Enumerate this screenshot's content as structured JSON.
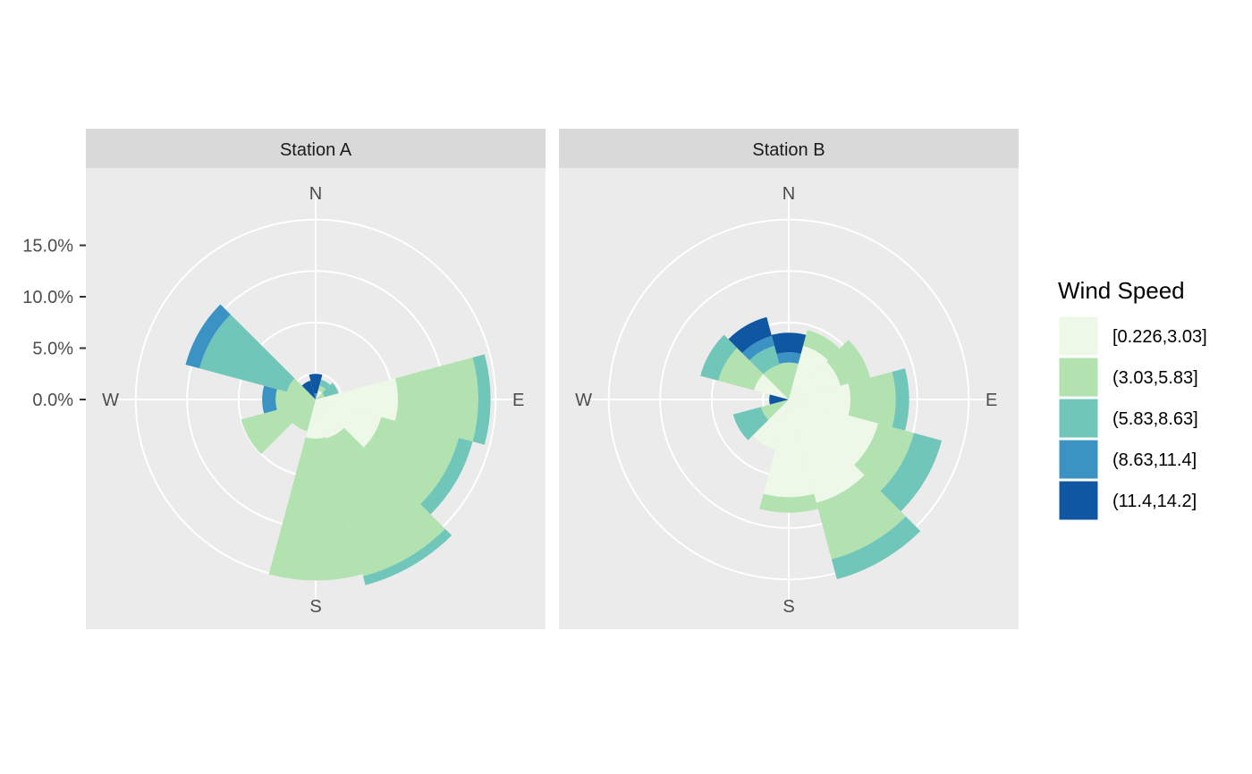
{
  "chart_data": {
    "type": "bar",
    "subtype": "wind-rose (stacked polar bar)",
    "title": "",
    "xlabel": "",
    "ylabel": "",
    "ylim": [
      0,
      20
    ],
    "ytick_values": [
      0,
      5,
      10,
      15
    ],
    "ytick_labels": [
      "0.0%",
      "5.0%",
      "10.0%",
      "15.0%"
    ],
    "radial_grid_values": [
      2.5,
      7.5,
      12.5,
      17.5
    ],
    "direction_labels": [
      {
        "label": "N",
        "angle": 0
      },
      {
        "label": "E",
        "angle": 90
      },
      {
        "label": "S",
        "angle": 180
      },
      {
        "label": "W",
        "angle": 270
      }
    ],
    "sector_angles": [
      0,
      30,
      60,
      90,
      120,
      150,
      180,
      210,
      240,
      270,
      300,
      330
    ],
    "sector_width_deg": 30,
    "grid": true,
    "legend": {
      "title": "Wind Speed",
      "position": "right",
      "bins": [
        "[0.226,3.03]",
        "(3.03,5.83]",
        "(5.83,8.63]",
        "(8.63,11.4]",
        "(11.4,14.2]"
      ],
      "colors": [
        "#edf8e9",
        "#b2e2b0",
        "#70c7b9",
        "#3b93c3",
        "#0f57a3"
      ]
    },
    "panels": [
      {
        "name": "Station A",
        "series": [
          {
            "name": "[0.226,3.03]",
            "values": [
              0,
              0.9,
              0,
              8,
              6.6,
              3.9,
              3.8,
              0,
              0,
              0,
              0,
              0
            ]
          },
          {
            "name": "(3.03,5.83]",
            "values": [
              0,
              0.5,
              0.9,
              7.8,
              7.8,
              13.9,
              13.8,
              3.2,
              7.5,
              3.9,
              2.9,
              0
            ]
          },
          {
            "name": "(5.83,8.63]",
            "values": [
              0,
              0.6,
              1.4,
              1.2,
              1.4,
              0.9,
              0,
              0,
              0,
              0,
              8.8,
              0
            ]
          },
          {
            "name": "(8.63,11.4]",
            "values": [
              0.6,
              0,
              0,
              0,
              0,
              0,
              0,
              0,
              0,
              1.3,
              1.4,
              0
            ]
          },
          {
            "name": "(11.4,14.2]",
            "values": [
              1.9,
              0,
              0,
              0,
              0,
              0,
              0,
              0,
              0,
              0,
              0,
              1.9
            ]
          }
        ]
      },
      {
        "name": "Station B",
        "series": [
          {
            "name": "[0.226,3.03]",
            "values": [
              0,
              5.4,
              5.2,
              6,
              9,
              10.4,
              9.5,
              5,
              0,
              0,
              3.5,
              0
            ]
          },
          {
            "name": "(3.03,5.83]",
            "values": [
              3.6,
              1.6,
              3,
              4.4,
              3.6,
              5.7,
              1.5,
              0,
              2.8,
              0,
              3.6,
              3.5
            ]
          },
          {
            "name": "(5.83,8.63]",
            "values": [
              0,
              0,
              0,
              1.3,
              2.8,
              2,
              0,
              0,
              2.8,
              0,
              1.8,
              1.9
            ]
          },
          {
            "name": "(8.63,11.4]",
            "values": [
              1,
              0,
              0,
              0,
              0,
              0,
              0,
              0,
              0,
              0,
              0,
              1
            ]
          },
          {
            "name": "(11.4,14.2]",
            "values": [
              1.9,
              0,
              0,
              0,
              0,
              0,
              0,
              0,
              0,
              1.9,
              0,
              1.9
            ]
          }
        ]
      }
    ]
  }
}
